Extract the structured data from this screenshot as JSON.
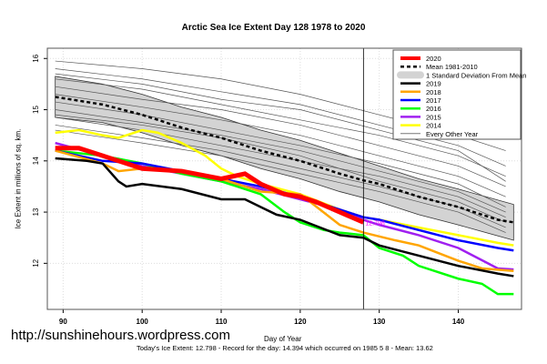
{
  "chart_data": {
    "type": "line",
    "title": "Arctic Sea Ice Extent Day 128 1978 to 2020",
    "xlabel": "Day of Year",
    "ylabel": "Ice Extent in millions of sq. km.",
    "xlim": [
      88,
      148
    ],
    "ylim": [
      11.1,
      16.2
    ],
    "xticks": [
      90,
      100,
      110,
      120,
      130,
      140
    ],
    "yticks": [
      12,
      13,
      14,
      15,
      16
    ],
    "grid": true,
    "legend_position": "top-right",
    "marker_day": 128,
    "point_label": "12.798",
    "legend": [
      "2020",
      "Mean 1981-2010",
      "1 Standard Deviation From Mean",
      "2019",
      "2018",
      "2017",
      "2016",
      "2015",
      "2014",
      "Every Other Year"
    ],
    "band": {
      "name": "1 Standard Deviation From Mean",
      "x": [
        89,
        95,
        100,
        105,
        110,
        115,
        120,
        125,
        130,
        135,
        140,
        147
      ],
      "lower": [
        14.85,
        14.75,
        14.55,
        14.3,
        14.1,
        13.85,
        13.65,
        13.4,
        13.2,
        12.95,
        12.75,
        12.45
      ],
      "upper": [
        15.65,
        15.5,
        15.3,
        15.05,
        14.85,
        14.6,
        14.4,
        14.15,
        13.9,
        13.65,
        13.45,
        13.15
      ],
      "color": "#d3d3d3"
    },
    "mean": {
      "name": "Mean 1981-2010",
      "x": [
        89,
        95,
        100,
        105,
        110,
        115,
        120,
        125,
        128,
        130,
        135,
        140,
        145,
        147
      ],
      "y": [
        15.25,
        15.1,
        14.9,
        14.65,
        14.45,
        14.2,
        14.0,
        13.75,
        13.62,
        13.55,
        13.3,
        13.1,
        12.85,
        12.8
      ],
      "color": "#000000"
    },
    "other_years": {
      "name": "Every Other Year",
      "color": "#555555",
      "x": [
        89,
        100,
        110,
        120,
        130,
        140,
        146
      ],
      "lines": [
        [
          15.95,
          15.8,
          15.6,
          15.3,
          14.9,
          14.5,
          14.2
        ],
        [
          15.8,
          15.6,
          15.35,
          15.1,
          14.7,
          14.3,
          13.9
        ],
        [
          15.6,
          15.4,
          15.1,
          14.8,
          14.5,
          14.1,
          13.7
        ],
        [
          15.45,
          15.2,
          15.0,
          14.7,
          14.3,
          13.9,
          13.5
        ],
        [
          15.3,
          15.05,
          14.8,
          14.5,
          14.1,
          13.7,
          13.3
        ],
        [
          15.15,
          14.9,
          14.6,
          14.3,
          13.95,
          13.55,
          13.1
        ],
        [
          15.0,
          14.75,
          14.5,
          14.2,
          13.8,
          13.4,
          13.0
        ],
        [
          14.85,
          14.6,
          14.3,
          14.0,
          13.7,
          13.3,
          12.9
        ],
        [
          14.7,
          14.45,
          14.2,
          13.85,
          13.5,
          13.1,
          12.7
        ],
        [
          14.6,
          14.35,
          14.1,
          13.75,
          13.4,
          13.0,
          12.6
        ],
        [
          15.7,
          15.5,
          15.2,
          15.0,
          14.6,
          14.2,
          13.6
        ],
        [
          14.9,
          14.7,
          14.45,
          14.1,
          13.6,
          13.2,
          12.8
        ]
      ]
    },
    "series": [
      {
        "name": "2014",
        "color": "#ffff00",
        "x": [
          89,
          92,
          95,
          97,
          100,
          102,
          105,
          108,
          110,
          112,
          115,
          120,
          125,
          128,
          130,
          135,
          140,
          145,
          147
        ],
        "y": [
          14.55,
          14.6,
          14.5,
          14.45,
          14.6,
          14.55,
          14.35,
          14.1,
          13.85,
          13.7,
          13.55,
          13.35,
          13.05,
          12.9,
          12.85,
          12.7,
          12.55,
          12.4,
          12.35
        ]
      },
      {
        "name": "2015",
        "color": "#a020f0",
        "x": [
          89,
          95,
          100,
          105,
          110,
          115,
          120,
          125,
          128,
          130,
          135,
          140,
          145,
          147
        ],
        "y": [
          14.35,
          14.1,
          13.9,
          13.75,
          13.6,
          13.45,
          13.25,
          13.05,
          12.85,
          12.75,
          12.55,
          12.3,
          11.9,
          11.88
        ]
      },
      {
        "name": "2016",
        "color": "#00ff00",
        "x": [
          89,
          95,
          100,
          105,
          110,
          115,
          118,
          120,
          123,
          125,
          128,
          130,
          133,
          135,
          140,
          143,
          145,
          147
        ],
        "y": [
          14.2,
          14.1,
          13.95,
          13.75,
          13.6,
          13.35,
          13.0,
          12.8,
          12.65,
          12.6,
          12.55,
          12.3,
          12.15,
          11.95,
          11.7,
          11.6,
          11.4,
          11.4
        ]
      },
      {
        "name": "2017",
        "color": "#0000ff",
        "x": [
          89,
          95,
          100,
          105,
          110,
          115,
          120,
          125,
          128,
          130,
          135,
          140,
          145,
          147
        ],
        "y": [
          14.2,
          14.0,
          13.95,
          13.8,
          13.65,
          13.5,
          13.3,
          13.05,
          12.9,
          12.85,
          12.65,
          12.45,
          12.3,
          12.25
        ]
      },
      {
        "name": "2018",
        "color": "#ffa500",
        "x": [
          89,
          95,
          97,
          100,
          105,
          110,
          115,
          120,
          125,
          128,
          132,
          135,
          140,
          143,
          147
        ],
        "y": [
          14.2,
          13.95,
          13.8,
          13.85,
          13.8,
          13.65,
          13.4,
          13.35,
          12.75,
          12.6,
          12.45,
          12.35,
          12.05,
          11.9,
          11.85
        ]
      },
      {
        "name": "2019",
        "color": "#000000",
        "x": [
          89,
          93,
          95,
          97,
          98,
          100,
          105,
          110,
          113,
          115,
          117,
          120,
          125,
          128,
          130,
          135,
          140,
          145,
          147
        ],
        "y": [
          14.05,
          14.0,
          13.95,
          13.6,
          13.5,
          13.55,
          13.45,
          13.25,
          13.25,
          13.1,
          12.95,
          12.85,
          12.55,
          12.5,
          12.35,
          12.15,
          11.95,
          11.8,
          11.75
        ]
      },
      {
        "name": "2020",
        "color": "#ff0000",
        "x": [
          89,
          92,
          95,
          100,
          105,
          110,
          113,
          115,
          118,
          120,
          122,
          125,
          128
        ],
        "y": [
          14.25,
          14.25,
          14.1,
          13.85,
          13.8,
          13.65,
          13.75,
          13.55,
          13.35,
          13.3,
          13.2,
          13.0,
          12.8
        ]
      }
    ]
  },
  "watermark": "http://sunshinehours.wordpress.com",
  "footer": "Today's Ice Extent: 12.798  - Record for the day: 14.394 which occurred on 1985 5 8  - Mean: 13.62"
}
